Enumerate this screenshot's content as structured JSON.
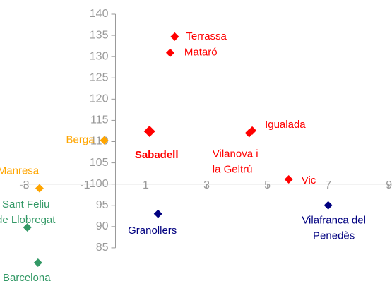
{
  "chart_data": {
    "type": "scatter",
    "xlim": [
      -3.8,
      9.1
    ],
    "ylim": [
      80,
      140
    ],
    "xticks": [
      -3,
      -1,
      1,
      3,
      5,
      7,
      9
    ],
    "yticks": [
      85,
      90,
      95,
      100,
      105,
      110,
      115,
      120,
      125,
      130,
      135,
      140
    ],
    "points": [
      {
        "label": [
          "Terrassa"
        ],
        "x": 1.95,
        "y": 134.7,
        "color": "#ff0000"
      },
      {
        "label": [
          "Mataró"
        ],
        "x": 1.8,
        "y": 130.9,
        "color": "#ff0000"
      },
      {
        "label": [
          "Sabadell"
        ],
        "x": 1.12,
        "y": 112.4,
        "color": "#ff0000",
        "bold": true
      },
      {
        "label": [
          "Igualada"
        ],
        "x": 4.5,
        "y": 112.6,
        "color": "#ff0000"
      },
      {
        "label": [
          "Vilanova i",
          "la Geltrú"
        ],
        "x": 4.4,
        "y": 112.0,
        "color": "#ff0000"
      },
      {
        "label": [
          "Berga"
        ],
        "x": -0.37,
        "y": 110.3,
        "color": "#ffa500"
      },
      {
        "label": [
          "Manresa"
        ],
        "x": -2.5,
        "y": 99.0,
        "color": "#ffa500"
      },
      {
        "label": [
          "Vic"
        ],
        "x": 5.7,
        "y": 101.1,
        "color": "#ff0000"
      },
      {
        "label": [
          "Granollers"
        ],
        "x": 1.4,
        "y": 93.0,
        "color": "#000080"
      },
      {
        "label": [
          "Vilafranca del",
          "Penedès"
        ],
        "x": 7.0,
        "y": 95.0,
        "color": "#000080"
      },
      {
        "label": [
          "Sant Feliu",
          "de Llobregat"
        ],
        "x": -2.9,
        "y": 89.8,
        "color": "#339966"
      },
      {
        "label": [
          "Barcelona"
        ],
        "x": -2.55,
        "y": 81.5,
        "color": "#339966"
      }
    ]
  }
}
